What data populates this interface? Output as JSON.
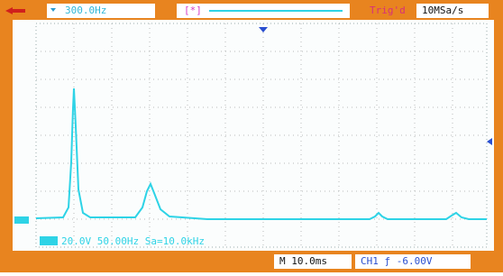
{
  "top_bar": {
    "frequency": "300.0Hz",
    "window": "[*]",
    "trigger_status": "Trig'd",
    "sample_rate": "10MSa/s"
  },
  "overlay": {
    "readout": "20.0V 50.00Hz Sa=10.0kHz"
  },
  "bottom_bar": {
    "timebase": "M 10.0ms",
    "channel": "CH1 ƒ -6.00V"
  }
}
